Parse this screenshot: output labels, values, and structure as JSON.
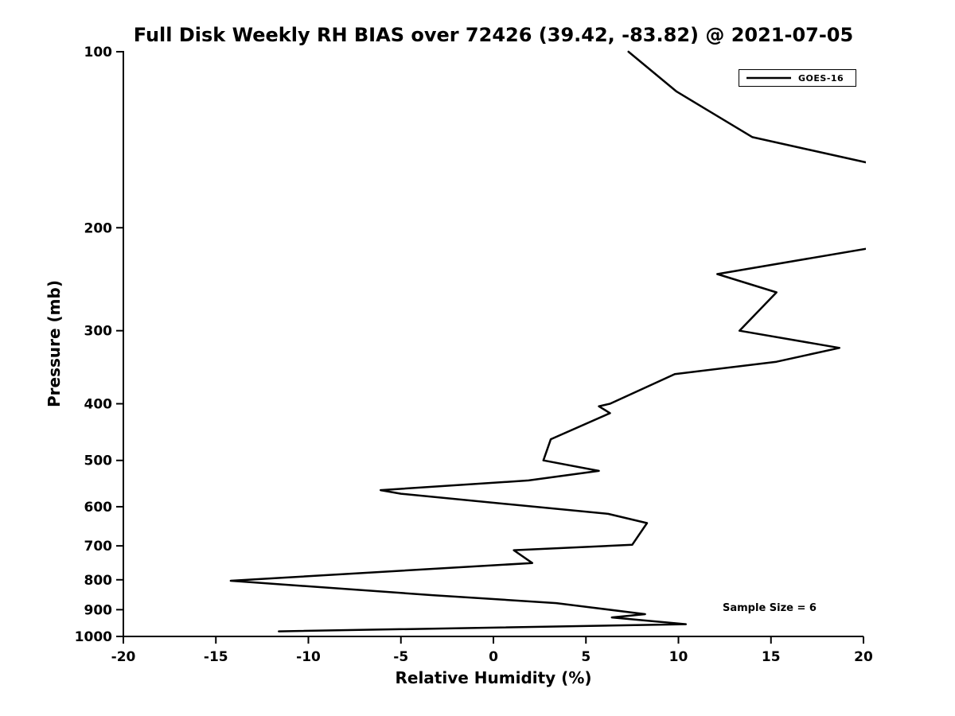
{
  "chart_data": {
    "type": "line",
    "title": "Full Disk Weekly RH BIAS over 72426 (39.42, -83.82) @ 2021-07-05",
    "xlabel": "Relative Humidity (%)",
    "ylabel": "Pressure (mb)",
    "xlim": [
      -20,
      20
    ],
    "ylim": [
      100,
      1000
    ],
    "yscale": "log",
    "y_inverted": true,
    "grid": false,
    "xticks": [
      -20,
      -15,
      -10,
      -5,
      0,
      5,
      10,
      15,
      20
    ],
    "yticks": [
      100,
      200,
      300,
      400,
      500,
      600,
      700,
      800,
      900,
      1000
    ],
    "legend_position": "top-right",
    "line_color": "#000000",
    "axis_color": "#000000",
    "background_color": "#ffffff",
    "series": [
      {
        "name": "GOES-16",
        "color": "#000000",
        "points_pressure_rh": [
          [
            100,
            7.3
          ],
          [
            117,
            9.9
          ],
          [
            140,
            14.0
          ],
          [
            170,
            26.0
          ],
          [
            215,
            21.0
          ],
          [
            240,
            12.1
          ],
          [
            258,
            15.3
          ],
          [
            300,
            13.3
          ],
          [
            321,
            18.7
          ],
          [
            339,
            15.3
          ],
          [
            356,
            9.8
          ],
          [
            400,
            6.3
          ],
          [
            404,
            5.7
          ],
          [
            415,
            6.3
          ],
          [
            460,
            3.1
          ],
          [
            500,
            2.7
          ],
          [
            521,
            5.7
          ],
          [
            541,
            1.9
          ],
          [
            562,
            -6.1
          ],
          [
            570,
            -5.0
          ],
          [
            617,
            6.2
          ],
          [
            640,
            8.3
          ],
          [
            697,
            7.5
          ],
          [
            712,
            1.1
          ],
          [
            749,
            2.1
          ],
          [
            803,
            -14.2
          ],
          [
            850,
            -3.3
          ],
          [
            877,
            3.4
          ],
          [
            916,
            8.2
          ],
          [
            928,
            6.4
          ],
          [
            953,
            10.4
          ],
          [
            980,
            -11.6
          ]
        ]
      }
    ],
    "annotations": [
      {
        "text": "Sample Size = 6",
        "x_rh": 12.5,
        "y_pressure": 905
      }
    ]
  }
}
